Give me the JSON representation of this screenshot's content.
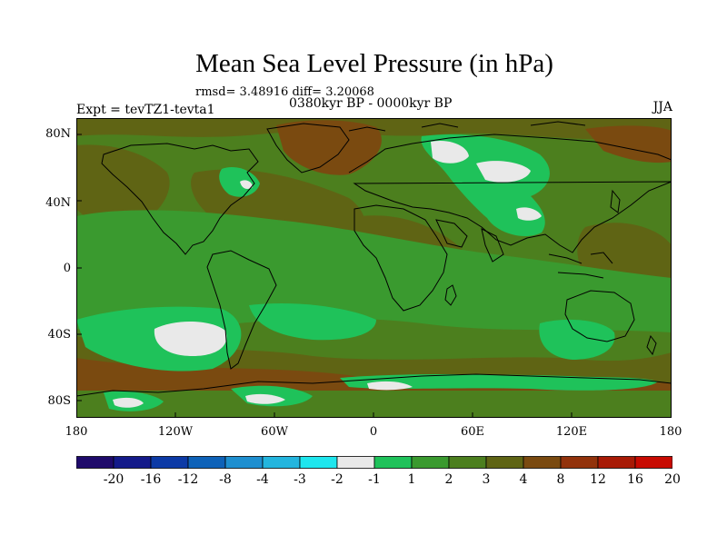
{
  "title": "Mean Sea Level Pressure (in hPa)",
  "stats": "rmsd= 3.48916 diff= 3.20068",
  "period": "0380kyr BP - 0000kyr BP",
  "experiment": "Expt = tevTZ1-tevta1",
  "season": "JJA",
  "lat_labels": [
    "80N",
    "40N",
    "0",
    "40S",
    "80S"
  ],
  "lon_labels": [
    "180",
    "120W",
    "60W",
    "0",
    "60E",
    "120E",
    "180"
  ],
  "colorbar": {
    "colors": [
      "#1f0a6b",
      "#141a8a",
      "#0c3aa6",
      "#0e62b8",
      "#1e8fd0",
      "#23b5de",
      "#1ee6ee",
      "#e9e9e9",
      "#1fc25a",
      "#3a9a2f",
      "#4c7f1e",
      "#5f6414",
      "#7a4a10",
      "#92320b",
      "#a81a06",
      "#c80a02"
    ],
    "labels": [
      "-20",
      "-16",
      "-12",
      "-8",
      "-4",
      "-3",
      "-2",
      "-1",
      "1",
      "2",
      "3",
      "4",
      "8",
      "12",
      "16",
      "20"
    ]
  },
  "fields": {
    "background": "#4c7f1e",
    "level_4_to_8": "#5f6414",
    "level_8_to_12": "#7a4a10",
    "level_2_to_3": "#3a9a2f",
    "level_1_to_2": "#1fc25a",
    "level_neg1_to_1": "#e9e9e9"
  }
}
